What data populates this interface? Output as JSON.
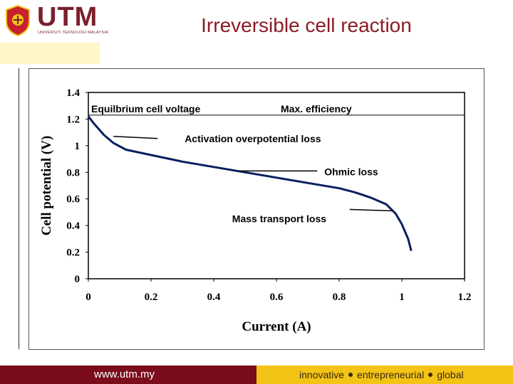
{
  "header": {
    "logo_text": "UTM",
    "logo_subtext": "UNIVERSITI TEKNOLOGI MALAYSIA",
    "title": "Irreversible cell reaction"
  },
  "footer": {
    "url": "www.utm.my",
    "tagline": [
      "innovative",
      "entrepreneurial",
      "global"
    ]
  },
  "colors": {
    "title": "#8b1c24",
    "brand_maroon": "#7a0c1c",
    "brand_gold": "#f3c316"
  },
  "chart_data": {
    "type": "line",
    "title": "",
    "xlabel": "Current (A)",
    "ylabel": "Cell potential (V)",
    "xlim": [
      0,
      1.2
    ],
    "ylim": [
      0,
      1.4
    ],
    "xticks": [
      "0",
      "0.2",
      "0.4",
      "0.6",
      "0.8",
      "1",
      "1.2"
    ],
    "yticks": [
      "0",
      "0.2",
      "0.4",
      "0.6",
      "0.8",
      "1",
      "1.2",
      "1.4"
    ],
    "grid": false,
    "reference_line": {
      "y": 1.23,
      "label": "Equilbrium cell voltage",
      "label2": "Max. efficiency"
    },
    "series": [
      {
        "name": "Cell potential",
        "x": [
          0,
          0.02,
          0.05,
          0.08,
          0.12,
          0.2,
          0.3,
          0.4,
          0.5,
          0.6,
          0.7,
          0.8,
          0.85,
          0.9,
          0.95,
          0.98,
          1.0,
          1.02,
          1.03
        ],
        "y": [
          1.22,
          1.16,
          1.08,
          1.02,
          0.97,
          0.93,
          0.88,
          0.84,
          0.8,
          0.76,
          0.72,
          0.68,
          0.65,
          0.61,
          0.56,
          0.49,
          0.41,
          0.3,
          0.21
        ]
      }
    ],
    "annotations": [
      {
        "text": "Activation overpotential loss",
        "x": 0.08,
        "y": 1.07
      },
      {
        "text": "Ohmic loss",
        "x": 0.48,
        "y": 0.81
      },
      {
        "text": "Mass transport loss",
        "x": 0.97,
        "y": 0.51
      }
    ]
  }
}
